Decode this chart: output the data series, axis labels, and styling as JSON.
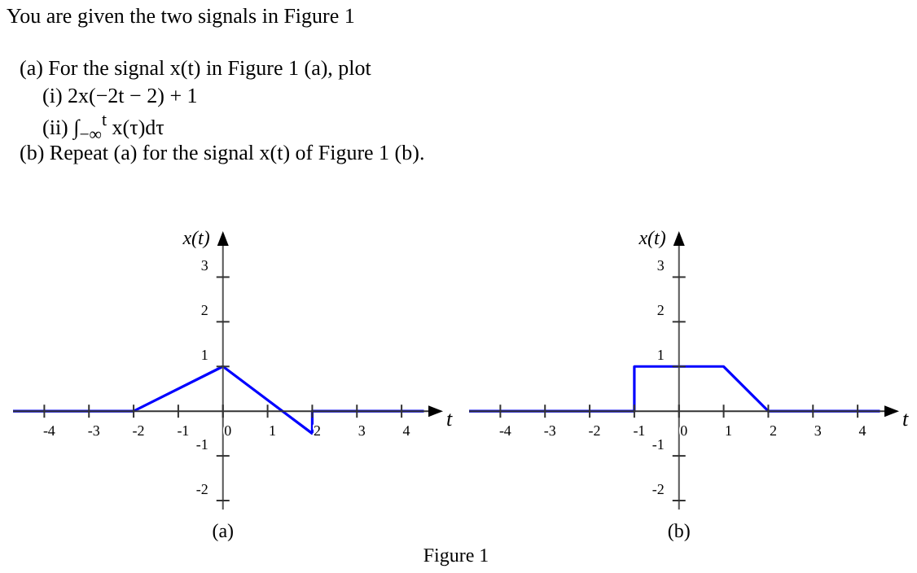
{
  "chart_data": [
    {
      "type": "line",
      "title": "You are given the two signals in Figure 1",
      "xlabel": "t",
      "ylabel": "x(t)",
      "xlim": [
        -4.7,
        4.6
      ],
      "ylim": [
        -2.2,
        3.7
      ],
      "xticks": [
        -4,
        -3,
        -2,
        -1,
        0,
        1,
        2,
        3,
        4
      ],
      "yticks": [
        -2,
        -1,
        1,
        2,
        3
      ],
      "marker": "none",
      "line_style": "solid",
      "series": [
        {
          "color": "#0000ff",
          "x": [
            -4.7,
            -2,
            0,
            2,
            2,
            4.5
          ],
          "values": [
            0,
            0,
            1,
            -0.5,
            0,
            0
          ]
        }
      ],
      "annotations": [
        "(a) For the signal x(t) in Figure 1 (a), plot",
        "(i) 2x(−2t − 2) + 1",
        "(ii) ∫$_{−∞}$$^{t}$ x(τ)dτ",
        "(b) Repeat (a) for the signal x(t) of Figure 1 (b).",
        "(a)"
      ]
    },
    {
      "type": "line",
      "xlabel": "t",
      "ylabel": "x(t)",
      "xlim": [
        -4.7,
        4.6
      ],
      "ylim": [
        -2.2,
        3.7
      ],
      "xticks": [
        -4,
        -3,
        -2,
        -1,
        0,
        1,
        2,
        3,
        4
      ],
      "yticks": [
        -2,
        -1,
        1,
        2,
        3
      ],
      "marker": "none",
      "line_style": "solid",
      "series": [
        {
          "color": "#0000ff",
          "x": [
            -4.7,
            -1,
            -1,
            1,
            2,
            4.5
          ],
          "values": [
            0,
            0,
            1,
            1,
            0,
            0
          ]
        }
      ],
      "annotations": [
        "Figure 1",
        "(b)"
      ]
    }
  ]
}
